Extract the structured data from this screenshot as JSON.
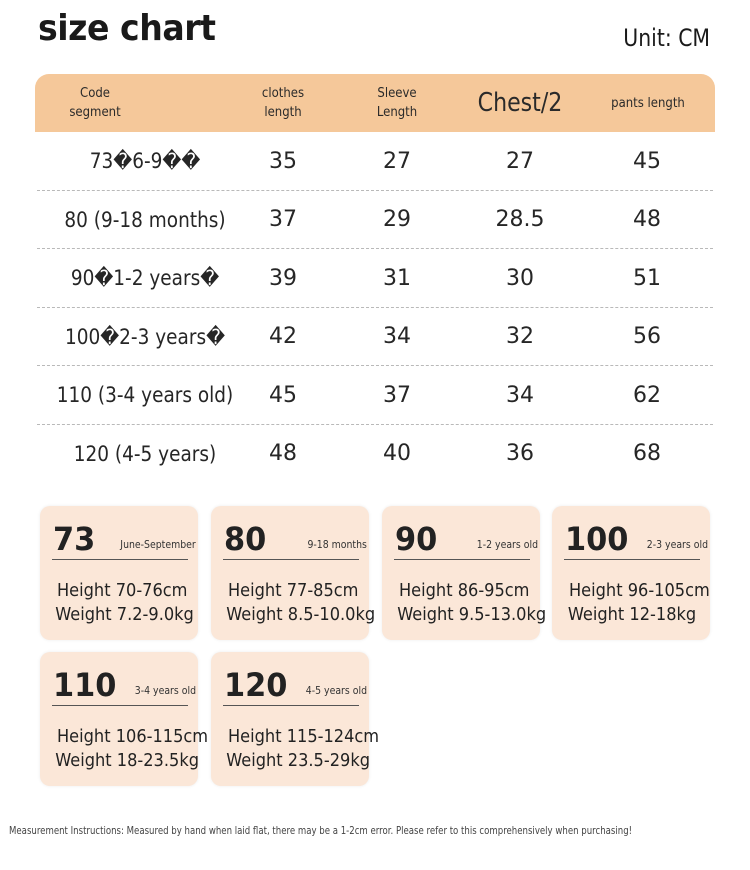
{
  "title": "size chart",
  "unit": "Unit: CM",
  "table": {
    "headers": [
      "Code\nsegment",
      "clothes\nlength",
      "Sleeve\nLength",
      "Chest/2",
      "pants length"
    ],
    "rows": [
      {
        "code": "73�6-9��",
        "clothes_length": "35",
        "sleeve_length": "27",
        "chest": "27",
        "pants_length": "45"
      },
      {
        "code": "80 (9-18 months)",
        "clothes_length": "37",
        "sleeve_length": "29",
        "chest": "28.5",
        "pants_length": "48"
      },
      {
        "code": "90�1-2 years�",
        "clothes_length": "39",
        "sleeve_length": "31",
        "chest": "30",
        "pants_length": "51"
      },
      {
        "code": "100�2-3 years�",
        "clothes_length": "42",
        "sleeve_length": "34",
        "chest": "32",
        "pants_length": "56"
      },
      {
        "code": "110 (3-4 years old)",
        "clothes_length": "45",
        "sleeve_length": "37",
        "chest": "34",
        "pants_length": "62"
      },
      {
        "code": "120 (4-5 years)",
        "clothes_length": "48",
        "sleeve_length": "40",
        "chest": "36",
        "pants_length": "68"
      }
    ]
  },
  "cards": [
    {
      "size": "73",
      "age": "June-September",
      "height": "Height 70-76cm",
      "weight": "Weight 7.2-9.0kg"
    },
    {
      "size": "80",
      "age": "9-18 months",
      "height": "Height 77-85cm",
      "weight": "Weight 8.5-10.0kg"
    },
    {
      "size": "90",
      "age": "1-2 years old",
      "height": "Height 86-95cm",
      "weight": "Weight 9.5-13.0kg"
    },
    {
      "size": "100",
      "age": "2-3 years old",
      "height": "Height 96-105cm",
      "weight": "Weight 12-18kg"
    },
    {
      "size": "110",
      "age": "3-4 years old",
      "height": "Height 106-115cm",
      "weight": "Weight 18-23.5kg"
    },
    {
      "size": "120",
      "age": "4-5 years old",
      "height": "Height 115-124cm",
      "weight": "Weight 23.5-29kg"
    }
  ],
  "footnote": "Measurement Instructions: Measured by hand when laid flat, there may be a 1-2cm error. Please refer to this comprehensively when purchasing!",
  "colors": {
    "header_bg": "#f5c89a",
    "card_bg": "#fbe7d8"
  }
}
